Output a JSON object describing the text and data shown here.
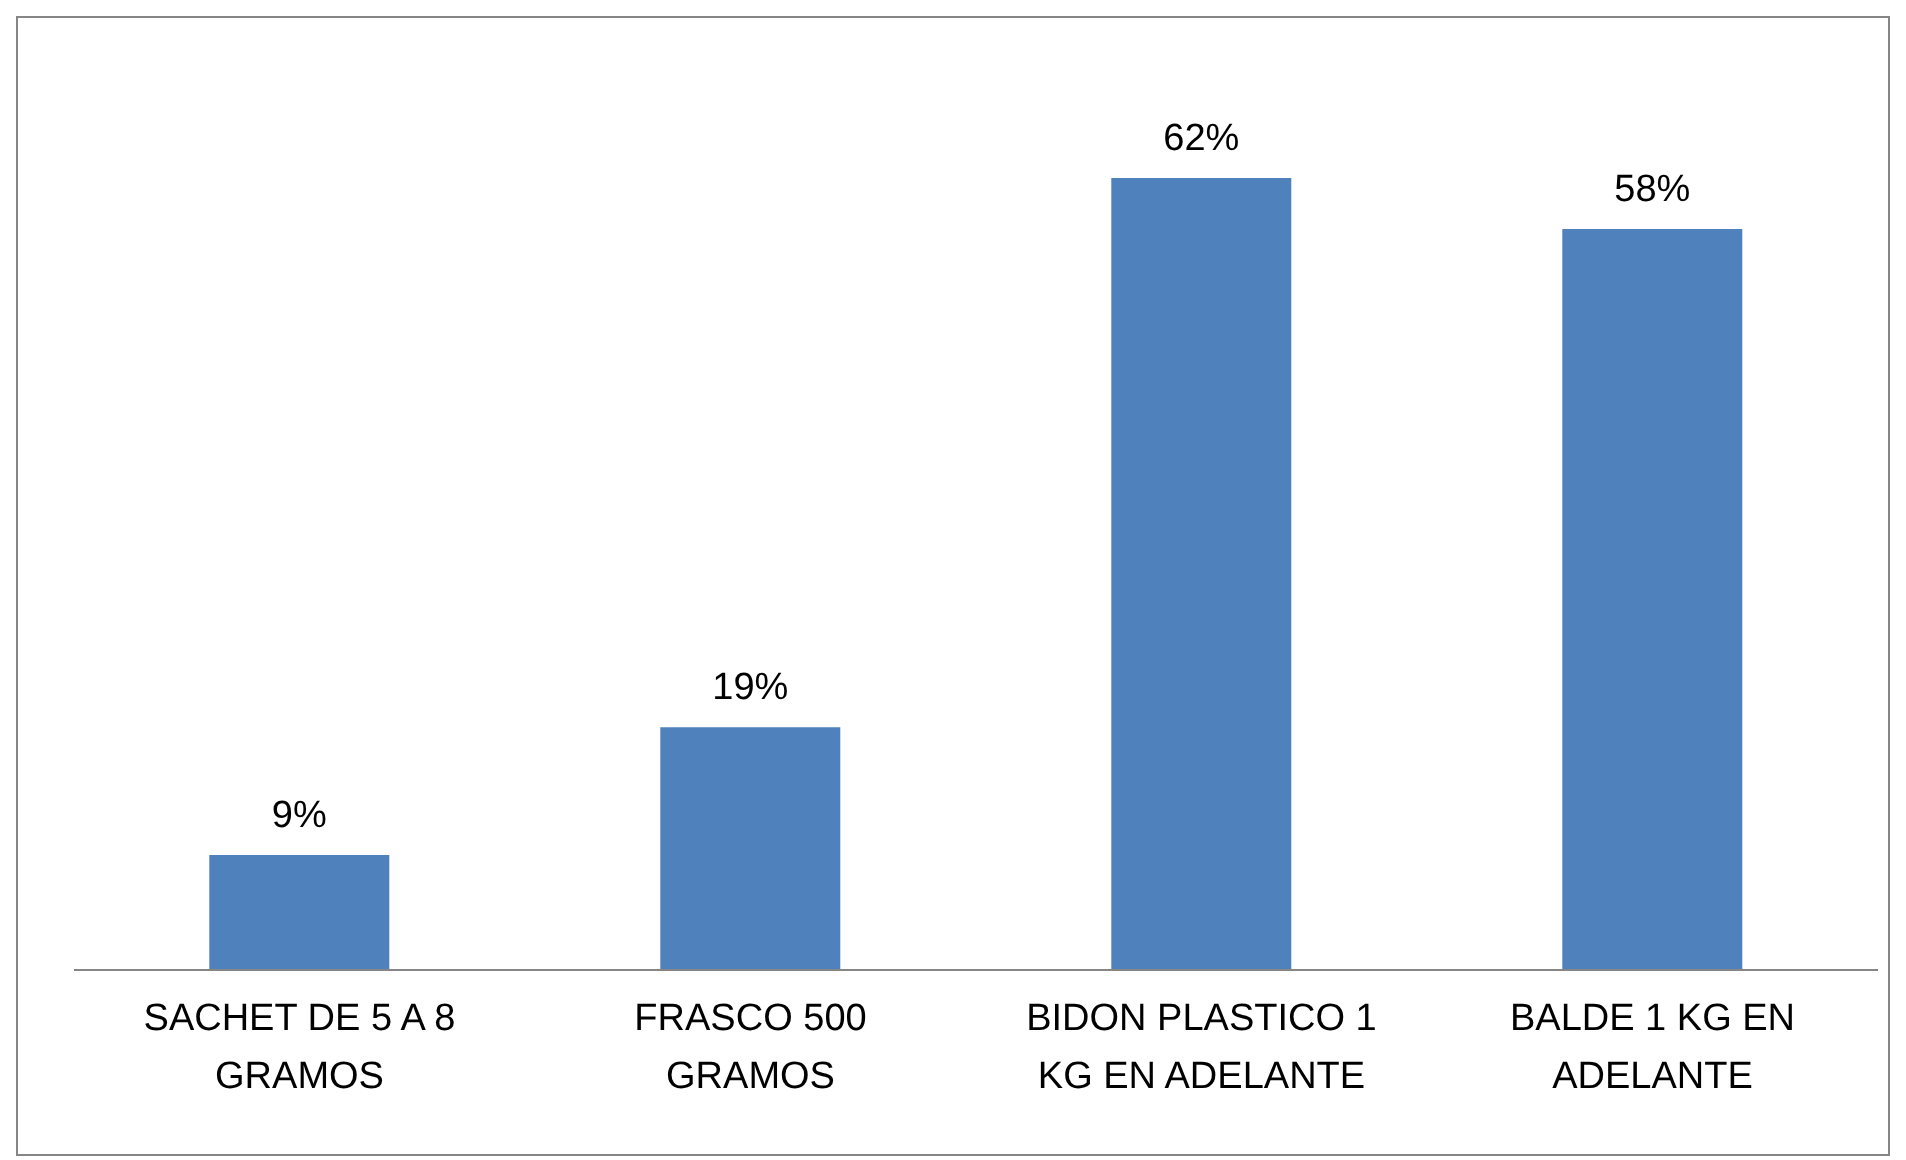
{
  "chart_data": {
    "type": "bar",
    "categories": [
      "SACHET DE 5 A 8 GRAMOS",
      "FRASCO 500 GRAMOS",
      "BIDON PLASTICO 1 KG EN ADELANTE",
      "BALDE 1 KG EN ADELANTE"
    ],
    "values": [
      9,
      19,
      62,
      58
    ],
    "value_labels": [
      "9%",
      "19%",
      "62%",
      "58%"
    ],
    "color": "#4f81bd"
  }
}
